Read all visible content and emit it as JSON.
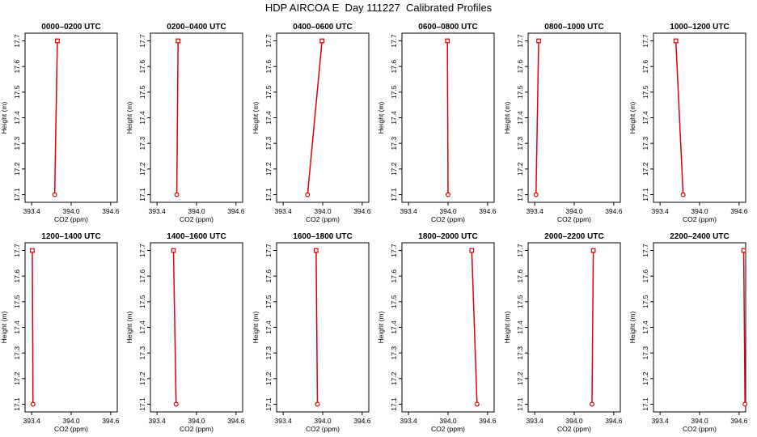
{
  "title": "HDP AIRCOA E  Day 111227  Calibrated Profiles",
  "colors": {
    "series": "#e00000",
    "axis": "#000000"
  },
  "chart_data": [
    {
      "type": "line",
      "title": "0000–0200 UTC",
      "xlabel": "CO2 (ppm)",
      "ylabel": "Height (m)",
      "xlim": [
        393.3,
        394.7
      ],
      "ylim": [
        17.07,
        17.73
      ],
      "xticks": [
        393.4,
        394.0,
        394.6
      ],
      "xtick_labels": [
        "393.4",
        "394.0",
        "394.6"
      ],
      "yticks": [
        17.1,
        17.2,
        17.3,
        17.4,
        17.5,
        17.6,
        17.7
      ],
      "ytick_labels": [
        "17.1",
        "17.2",
        "17.3",
        "17.4",
        "17.5",
        "17.6",
        "17.7"
      ],
      "series": [
        {
          "x": [
            393.75,
            393.79
          ],
          "y": [
            17.1,
            17.7
          ]
        }
      ]
    },
    {
      "type": "line",
      "title": "0200–0400 UTC",
      "xlabel": "CO2 (ppm)",
      "ylabel": "Height (m)",
      "xlim": [
        393.3,
        394.7
      ],
      "ylim": [
        17.07,
        17.73
      ],
      "xticks": [
        393.4,
        394.0,
        394.6
      ],
      "xtick_labels": [
        "393.4",
        "394.0",
        "394.6"
      ],
      "yticks": [
        17.1,
        17.2,
        17.3,
        17.4,
        17.5,
        17.6,
        17.7
      ],
      "ytick_labels": [
        "17.1",
        "17.2",
        "17.3",
        "17.4",
        "17.5",
        "17.6",
        "17.7"
      ],
      "series": [
        {
          "x": [
            393.7,
            393.72
          ],
          "y": [
            17.1,
            17.7
          ]
        }
      ]
    },
    {
      "type": "line",
      "title": "0400–0600 UTC",
      "xlabel": "CO2 (ppm)",
      "ylabel": "Height (m)",
      "xlim": [
        393.3,
        394.7
      ],
      "ylim": [
        17.07,
        17.73
      ],
      "xticks": [
        393.4,
        394.0,
        394.6
      ],
      "xtick_labels": [
        "393.4",
        "394.0",
        "394.6"
      ],
      "yticks": [
        17.1,
        17.2,
        17.3,
        17.4,
        17.5,
        17.6,
        17.7
      ],
      "ytick_labels": [
        "17.1",
        "17.2",
        "17.3",
        "17.4",
        "17.5",
        "17.6",
        "17.7"
      ],
      "series": [
        {
          "x": [
            393.77,
            393.99
          ],
          "y": [
            17.1,
            17.7
          ]
        }
      ]
    },
    {
      "type": "line",
      "title": "0600–0800 UTC",
      "xlabel": "CO2 (ppm)",
      "ylabel": "Height (m)",
      "xlim": [
        393.3,
        394.7
      ],
      "ylim": [
        17.07,
        17.73
      ],
      "xticks": [
        393.4,
        394.0,
        394.6
      ],
      "xtick_labels": [
        "393.4",
        "394.0",
        "394.6"
      ],
      "yticks": [
        17.1,
        17.2,
        17.3,
        17.4,
        17.5,
        17.6,
        17.7
      ],
      "ytick_labels": [
        "17.1",
        "17.2",
        "17.3",
        "17.4",
        "17.5",
        "17.6",
        "17.7"
      ],
      "series": [
        {
          "x": [
            394.0,
            393.99
          ],
          "y": [
            17.1,
            17.7
          ]
        }
      ]
    },
    {
      "type": "line",
      "title": "0800–1000 UTC",
      "xlabel": "CO2 (ppm)",
      "ylabel": "Height (m)",
      "xlim": [
        393.3,
        394.7
      ],
      "ylim": [
        17.07,
        17.73
      ],
      "xticks": [
        393.4,
        394.0,
        394.6
      ],
      "xtick_labels": [
        "393.4",
        "394.0",
        "394.6"
      ],
      "yticks": [
        17.1,
        17.2,
        17.3,
        17.4,
        17.5,
        17.6,
        17.7
      ],
      "ytick_labels": [
        "17.1",
        "17.2",
        "17.3",
        "17.4",
        "17.5",
        "17.6",
        "17.7"
      ],
      "series": [
        {
          "x": [
            393.42,
            393.46
          ],
          "y": [
            17.1,
            17.7
          ]
        }
      ]
    },
    {
      "type": "line",
      "title": "1000–1200 UTC",
      "xlabel": "CO2 (ppm)",
      "ylabel": "Height (m)",
      "xlim": [
        393.3,
        394.7
      ],
      "ylim": [
        17.07,
        17.73
      ],
      "xticks": [
        393.4,
        394.0,
        394.6
      ],
      "xtick_labels": [
        "393.4",
        "394.0",
        "394.6"
      ],
      "yticks": [
        17.1,
        17.2,
        17.3,
        17.4,
        17.5,
        17.6,
        17.7
      ],
      "ytick_labels": [
        "17.1",
        "17.2",
        "17.3",
        "17.4",
        "17.5",
        "17.6",
        "17.7"
      ],
      "series": [
        {
          "x": [
            393.75,
            393.64
          ],
          "y": [
            17.1,
            17.7
          ]
        }
      ]
    },
    {
      "type": "line",
      "title": "1200–1400 UTC",
      "xlabel": "CO2 (ppm)",
      "ylabel": "Height (m)",
      "xlim": [
        393.3,
        394.7
      ],
      "ylim": [
        17.07,
        17.73
      ],
      "xticks": [
        393.4,
        394.0,
        394.6
      ],
      "xtick_labels": [
        "393.4",
        "394.0",
        "394.6"
      ],
      "yticks": [
        17.1,
        17.2,
        17.3,
        17.4,
        17.5,
        17.6,
        17.7
      ],
      "ytick_labels": [
        "17.1",
        "17.2",
        "17.3",
        "17.4",
        "17.5",
        "17.6",
        "17.7"
      ],
      "series": [
        {
          "x": [
            393.42,
            393.41
          ],
          "y": [
            17.1,
            17.7
          ]
        }
      ]
    },
    {
      "type": "line",
      "title": "1400–1600 UTC",
      "xlabel": "CO2 (ppm)",
      "ylabel": "Height (m)",
      "xlim": [
        393.3,
        394.7
      ],
      "ylim": [
        17.07,
        17.73
      ],
      "xticks": [
        393.4,
        394.0,
        394.6
      ],
      "xtick_labels": [
        "393.4",
        "394.0",
        "394.6"
      ],
      "yticks": [
        17.1,
        17.2,
        17.3,
        17.4,
        17.5,
        17.6,
        17.7
      ],
      "ytick_labels": [
        "17.1",
        "17.2",
        "17.3",
        "17.4",
        "17.5",
        "17.6",
        "17.7"
      ],
      "series": [
        {
          "x": [
            393.69,
            393.65
          ],
          "y": [
            17.1,
            17.7
          ]
        }
      ]
    },
    {
      "type": "line",
      "title": "1600–1800 UTC",
      "xlabel": "CO2 (ppm)",
      "ylabel": "Height (m)",
      "xlim": [
        393.3,
        394.7
      ],
      "ylim": [
        17.07,
        17.73
      ],
      "xticks": [
        393.4,
        394.0,
        394.6
      ],
      "xtick_labels": [
        "393.4",
        "394.0",
        "394.6"
      ],
      "yticks": [
        17.1,
        17.2,
        17.3,
        17.4,
        17.5,
        17.6,
        17.7
      ],
      "ytick_labels": [
        "17.1",
        "17.2",
        "17.3",
        "17.4",
        "17.5",
        "17.6",
        "17.7"
      ],
      "series": [
        {
          "x": [
            393.92,
            393.9
          ],
          "y": [
            17.1,
            17.7
          ]
        }
      ]
    },
    {
      "type": "line",
      "title": "1800–2000 UTC",
      "xlabel": "CO2 (ppm)",
      "ylabel": "Height (m)",
      "xlim": [
        393.3,
        394.7
      ],
      "ylim": [
        17.07,
        17.73
      ],
      "xticks": [
        393.4,
        394.0,
        394.6
      ],
      "xtick_labels": [
        "393.4",
        "394.0",
        "394.6"
      ],
      "yticks": [
        17.1,
        17.2,
        17.3,
        17.4,
        17.5,
        17.6,
        17.7
      ],
      "ytick_labels": [
        "17.1",
        "17.2",
        "17.3",
        "17.4",
        "17.5",
        "17.6",
        "17.7"
      ],
      "series": [
        {
          "x": [
            394.44,
            394.36
          ],
          "y": [
            17.1,
            17.7
          ]
        }
      ]
    },
    {
      "type": "line",
      "title": "2000–2200 UTC",
      "xlabel": "CO2 (ppm)",
      "ylabel": "Height (m)",
      "xlim": [
        393.3,
        394.7
      ],
      "ylim": [
        17.07,
        17.73
      ],
      "xticks": [
        393.4,
        394.0,
        394.6
      ],
      "xtick_labels": [
        "393.4",
        "394.0",
        "394.6"
      ],
      "yticks": [
        17.1,
        17.2,
        17.3,
        17.4,
        17.5,
        17.6,
        17.7
      ],
      "ytick_labels": [
        "17.1",
        "17.2",
        "17.3",
        "17.4",
        "17.5",
        "17.6",
        "17.7"
      ],
      "series": [
        {
          "x": [
            394.27,
            394.29
          ],
          "y": [
            17.1,
            17.7
          ]
        }
      ]
    },
    {
      "type": "line",
      "title": "2200–2400 UTC",
      "xlabel": "CO2 (ppm)",
      "ylabel": "Height (m)",
      "xlim": [
        393.3,
        394.7
      ],
      "ylim": [
        17.07,
        17.73
      ],
      "xticks": [
        393.4,
        394.0,
        394.6
      ],
      "xtick_labels": [
        "393.4",
        "394.0",
        "394.6"
      ],
      "yticks": [
        17.1,
        17.2,
        17.3,
        17.4,
        17.5,
        17.6,
        17.7
      ],
      "ytick_labels": [
        "17.1",
        "17.2",
        "17.3",
        "17.4",
        "17.5",
        "17.6",
        "17.7"
      ],
      "series": [
        {
          "x": [
            394.69,
            394.67
          ],
          "y": [
            17.1,
            17.7
          ]
        }
      ]
    }
  ]
}
